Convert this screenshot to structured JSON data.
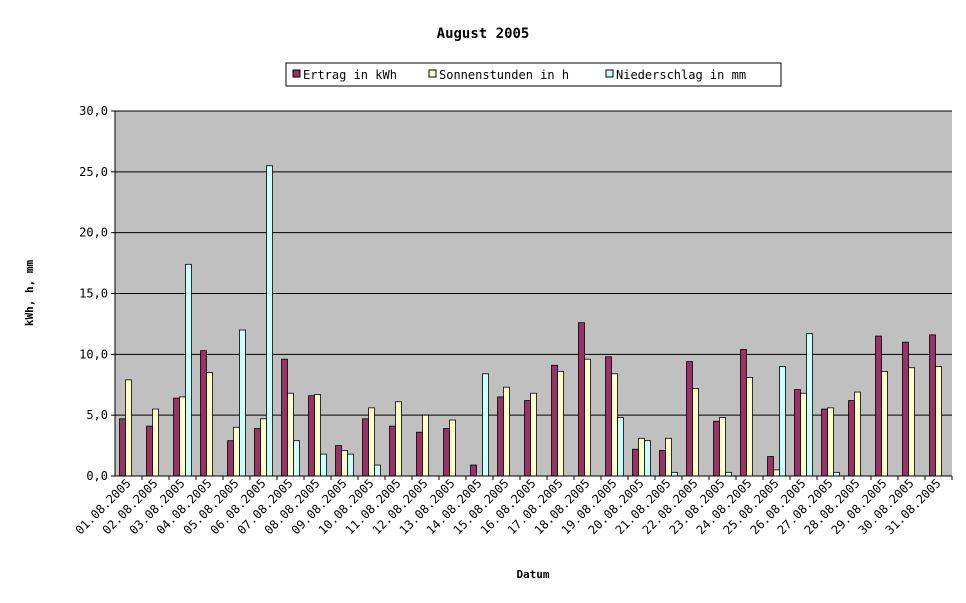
{
  "chart_data": {
    "type": "bar",
    "title": "August 2005",
    "xlabel": "Datum",
    "ylabel": "kWh, h, mm",
    "ylim": [
      0,
      30
    ],
    "yticks": [
      "0,0",
      "5,0",
      "10,0",
      "15,0",
      "20,0",
      "25,0",
      "30,0"
    ],
    "grid": true,
    "legend_position": "top",
    "categories": [
      "01.08.2005",
      "02.08.2005",
      "03.08.2005",
      "04.08.2005",
      "05.08.2005",
      "06.08.2005",
      "07.08.2005",
      "08.08.2005",
      "09.08.2005",
      "10.08.2005",
      "11.08.2005",
      "12.08.2005",
      "13.08.2005",
      "14.08.2005",
      "15.08.2005",
      "16.08.2005",
      "17.08.2005",
      "18.08.2005",
      "19.08.2005",
      "20.08.2005",
      "21.08.2005",
      "22.08.2005",
      "23.08.2005",
      "24.08.2005",
      "25.08.2005",
      "26.08.2005",
      "27.08.2005",
      "28.08.2005",
      "29.08.2005",
      "30.08.2005",
      "31.08.2005"
    ],
    "series": [
      {
        "name": "Ertrag in kWh",
        "color": "#993366",
        "values": [
          4.7,
          4.1,
          6.4,
          10.3,
          2.9,
          3.9,
          9.6,
          6.6,
          2.5,
          4.7,
          4.1,
          3.6,
          3.9,
          0.9,
          6.5,
          6.2,
          9.1,
          12.6,
          9.8,
          2.2,
          2.1,
          9.4,
          4.5,
          10.4,
          1.6,
          7.1,
          5.5,
          6.2,
          11.5,
          11.0,
          11.6
        ]
      },
      {
        "name": "Sonnenstunden in h",
        "color": "#ffffcc",
        "values": [
          7.9,
          5.5,
          6.5,
          8.5,
          4.0,
          4.7,
          6.8,
          6.7,
          2.1,
          5.6,
          6.1,
          5.0,
          4.6,
          0,
          7.3,
          6.8,
          8.6,
          9.6,
          8.4,
          3.1,
          3.1,
          7.2,
          4.8,
          8.1,
          0.5,
          6.8,
          5.6,
          6.9,
          8.6,
          8.9,
          9.0
        ]
      },
      {
        "name": "Niederschlag in mm",
        "color": "#ccffff",
        "values": [
          0,
          0,
          17.4,
          0,
          12.0,
          25.5,
          2.9,
          1.8,
          1.8,
          0.9,
          0,
          0,
          0,
          8.4,
          0,
          0,
          0,
          0,
          4.8,
          2.9,
          0.3,
          0,
          0.3,
          0,
          9.0,
          11.7,
          0.3,
          0,
          0,
          0,
          0
        ]
      }
    ]
  }
}
